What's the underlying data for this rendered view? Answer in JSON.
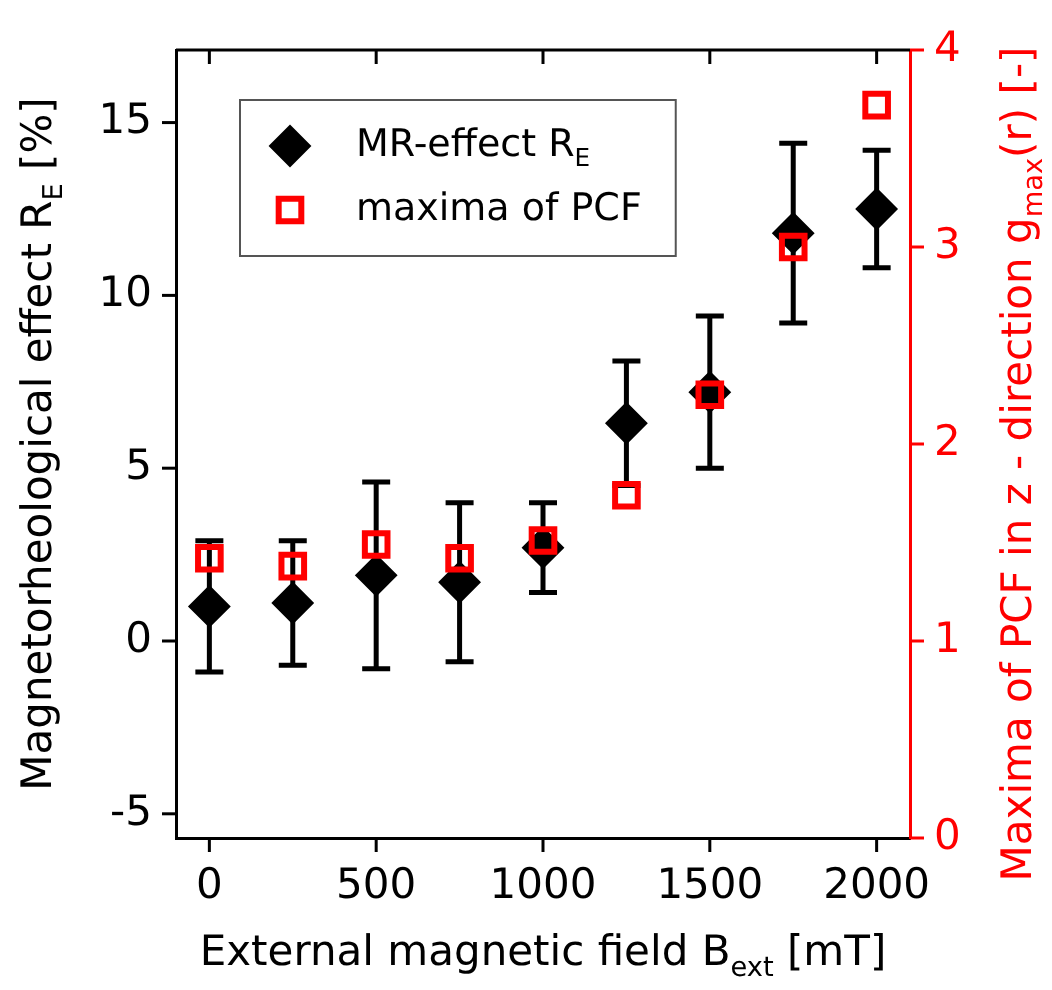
{
  "chart_data": {
    "type": "scatter",
    "xlabel": "External magnetic field B$_{ext}$ [mT]",
    "ylabel": "Magnetorheological effect R$_{E}$ [%]",
    "y2label": "Maxima of PCF in z - direction g$_{max}$(r) [-]",
    "x": [
      0,
      250,
      500,
      750,
      1000,
      1250,
      1500,
      1750,
      2000
    ],
    "xlim": [
      -100,
      2100
    ],
    "xticks": [
      0,
      500,
      1000,
      1500,
      2000
    ],
    "ylim": [
      -5.7,
      17.1
    ],
    "yticks": [
      -5,
      0,
      5,
      10,
      15
    ],
    "y2lim": [
      0,
      4
    ],
    "y2ticks": [
      0,
      1,
      2,
      3,
      4
    ],
    "legend": "top left",
    "series": [
      {
        "name": "MR-effect R$_{E}$",
        "color": "#000000",
        "marker": "diamond",
        "values": [
          1.0,
          1.1,
          1.9,
          1.7,
          2.7,
          6.3,
          7.2,
          11.8,
          12.5
        ],
        "errors": [
          1.9,
          1.8,
          2.7,
          2.3,
          1.3,
          1.8,
          2.2,
          2.6,
          1.7
        ]
      },
      {
        "name": "maxima of PCF",
        "color": "#ff0000",
        "marker": "square",
        "axis": "y2",
        "values": [
          1.42,
          1.38,
          1.49,
          1.42,
          1.51,
          1.74,
          2.25,
          3.0,
          3.72
        ]
      }
    ]
  }
}
